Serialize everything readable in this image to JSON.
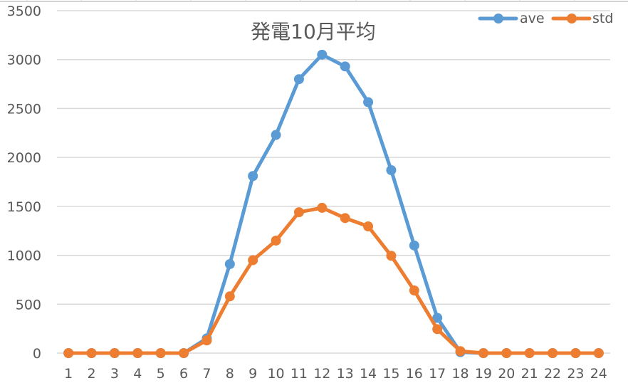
{
  "chart_data": {
    "type": "line",
    "title": "発電10月平均",
    "xlabel": "",
    "ylabel": "",
    "categories": [
      "1",
      "2",
      "3",
      "4",
      "5",
      "6",
      "7",
      "8",
      "9",
      "10",
      "11",
      "12",
      "13",
      "14",
      "15",
      "16",
      "17",
      "18",
      "19",
      "20",
      "21",
      "22",
      "23",
      "24"
    ],
    "series": [
      {
        "name": "ave",
        "color": "#5B9BD5",
        "values": [
          0,
          0,
          0,
          0,
          0,
          0,
          150,
          910,
          1810,
          2230,
          2800,
          3050,
          2930,
          2565,
          1870,
          1100,
          360,
          10,
          0,
          0,
          0,
          0,
          0,
          0
        ]
      },
      {
        "name": "std",
        "color": "#ED7D31",
        "values": [
          0,
          0,
          0,
          0,
          0,
          0,
          130,
          580,
          950,
          1150,
          1440,
          1485,
          1380,
          1295,
          995,
          640,
          245,
          20,
          0,
          0,
          0,
          0,
          0,
          0
        ]
      }
    ],
    "ylim": [
      0,
      3500
    ],
    "yticks": [
      0,
      500,
      1000,
      1500,
      2000,
      2500,
      3000,
      3500
    ],
    "grid": {
      "horizontal": true,
      "vertical": false,
      "color": "#D9D9D9"
    },
    "legend": {
      "position": "top-right",
      "entries": [
        "ave",
        "std"
      ]
    },
    "markers": "circle"
  }
}
